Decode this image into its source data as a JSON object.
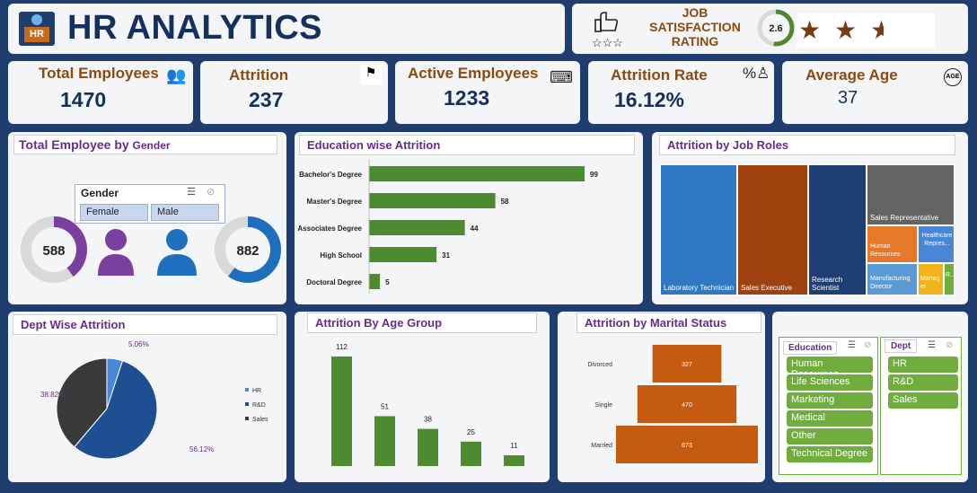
{
  "header": {
    "title": "HR ANALYTICS",
    "logo_text": "HR"
  },
  "satisfaction": {
    "label_line1": "JOB",
    "label_line2": "SATISFACTION",
    "label_line3": "RATING",
    "score": "2.6",
    "rating_fraction": 0.52,
    "stars": 2.6
  },
  "kpis": [
    {
      "title": "Total Employees",
      "value": "1470",
      "icon": "people-group-icon"
    },
    {
      "title": "Attrition",
      "value": "237",
      "icon": "people-leaving-icon"
    },
    {
      "title": "Active Employees",
      "value": "1233",
      "icon": "person-at-desk-icon"
    },
    {
      "title": "Attrition Rate",
      "value": "16.12%",
      "icon": "percent-person-icon"
    },
    {
      "title": "Average Age",
      "value": "37",
      "icon": "age-badge-icon"
    }
  ],
  "gender_panel": {
    "title_main": "Total Employee by ",
    "title_small": "Gender",
    "slicer_title": "Gender",
    "options": [
      "Female",
      "Male"
    ],
    "female_count": "588",
    "male_count": "882",
    "female_fraction": 0.4,
    "male_fraction": 0.6,
    "colors": {
      "female": "#7b3fa0",
      "male": "#1f6fbf",
      "track": "#d9d9d9"
    }
  },
  "education_attrition": {
    "title": "Education wise Attrition",
    "chart_data": {
      "type": "bar",
      "categories": [
        "Bachelor's Degree",
        "Master's Degree",
        "Associates Degree",
        "High School",
        "Doctoral Degree"
      ],
      "values": [
        99,
        58,
        44,
        31,
        5
      ],
      "color": "#4e8a2f"
    }
  },
  "job_roles": {
    "title": "Attrition by Job Roles",
    "tiles": [
      {
        "label": "Laboratory Technician",
        "color": "#2f78c4"
      },
      {
        "label": "Sales Executive",
        "color": "#a0420f"
      },
      {
        "label": "Research Scientist",
        "color": "#1e3f73"
      },
      {
        "label": "Sales Representative",
        "color": "#636363"
      },
      {
        "label": "Human Resources",
        "color": "#e6782a"
      },
      {
        "label": "Healthcare Repres...",
        "color": "#4a86d8"
      },
      {
        "label": "Manufacturing Director",
        "color": "#5b9bd5"
      },
      {
        "label": "Manager",
        "color": "#f2b21c"
      },
      {
        "label": "R...",
        "color": "#6fae3e"
      }
    ]
  },
  "dept_attrition": {
    "title": "Dept Wise Attrition",
    "chart_data": {
      "type": "pie",
      "categories": [
        "HR",
        "R&D",
        "Sales"
      ],
      "values": [
        5.06,
        56.12,
        38.82
      ],
      "labels": [
        "5.06%",
        "56.12%",
        "38.82%"
      ],
      "colors": [
        "#4a86d8",
        "#1f4f93",
        "#3a3a3a"
      ]
    }
  },
  "age_attrition": {
    "title": "Attrition By Age Group",
    "chart_data": {
      "type": "bar",
      "categories": [
        "",
        "",
        "",
        "",
        ""
      ],
      "values": [
        112,
        51,
        38,
        25,
        11
      ],
      "color": "#4e8a2f"
    }
  },
  "marital_attrition": {
    "title": "Attrition by Marital Status",
    "chart_data": {
      "type": "bar",
      "categories": [
        "Divorced",
        "Single",
        "Married"
      ],
      "values": [
        327,
        470,
        673
      ],
      "color": "#c55a11"
    }
  },
  "slicers": {
    "education": {
      "title": "Education",
      "items": [
        "Human Resources",
        "Life Sciences",
        "Marketing",
        "Medical",
        "Other",
        "Technical Degree"
      ]
    },
    "dept": {
      "title": "Dept",
      "items": [
        "HR",
        "R&D",
        "Sales"
      ]
    }
  }
}
